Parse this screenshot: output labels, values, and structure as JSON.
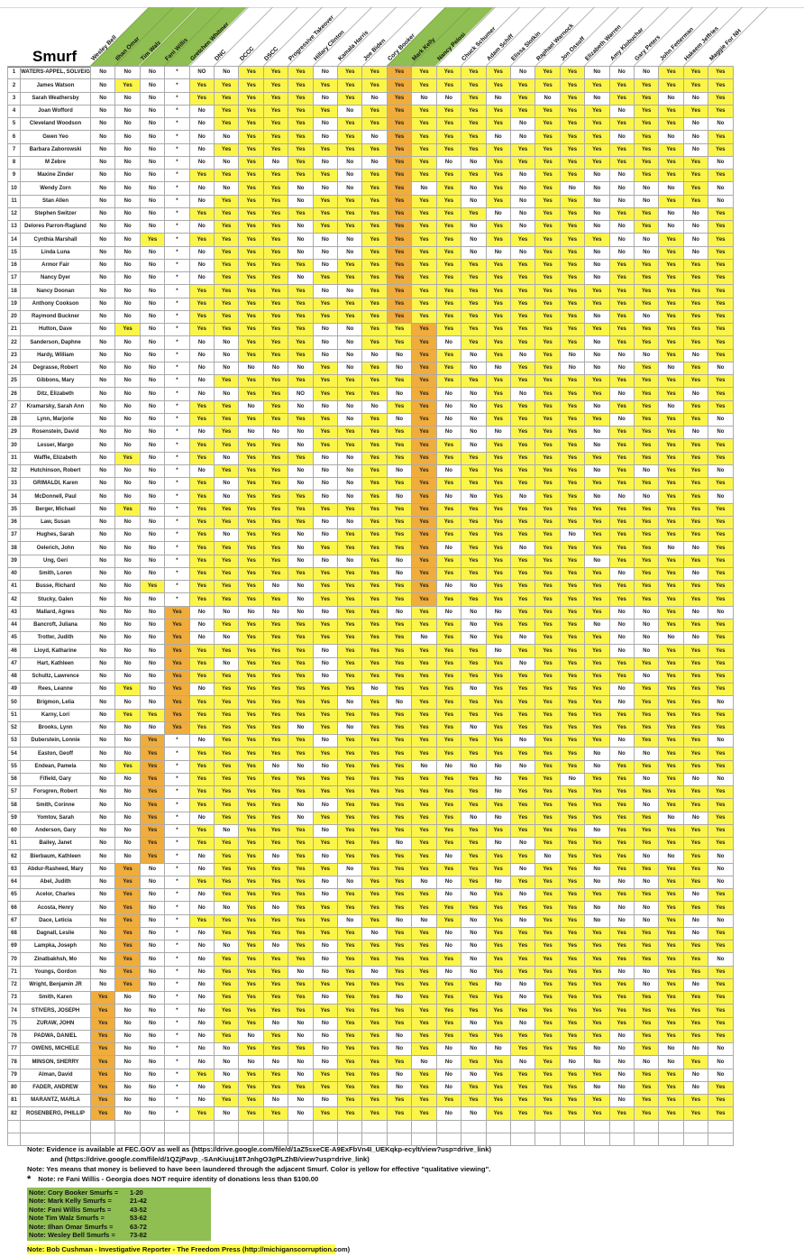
{
  "title": "Smurf",
  "legend": {
    "yes_color": "#fcf549",
    "no_color": "#ffffff",
    "group_color": "#f0ad3c",
    "header_green": "#8fbe52"
  },
  "columns": [
    {
      "name": "Wesley Bell",
      "green": true
    },
    {
      "name": "Ilhan Omar",
      "green": true
    },
    {
      "name": "Tim Walz",
      "green": true
    },
    {
      "name": "Fani Willis",
      "green": true
    },
    {
      "name": "Gretchen Whitmer",
      "green": false
    },
    {
      "name": "DNC",
      "green": false
    },
    {
      "name": "DCCC",
      "green": false
    },
    {
      "name": "DSCC",
      "green": false
    },
    {
      "name": "Progressive Takeover",
      "green": false
    },
    {
      "name": "Hillary Clinton",
      "green": false
    },
    {
      "name": "Kamala Harris",
      "green": false
    },
    {
      "name": "Joe Biden",
      "green": false
    },
    {
      "name": "Cory Booker",
      "green": true
    },
    {
      "name": "Mark Kelly",
      "green": true
    },
    {
      "name": "Nancy Pelosi",
      "green": false
    },
    {
      "name": "Chuck Schumer",
      "green": false
    },
    {
      "name": "Adam Schiff",
      "green": false
    },
    {
      "name": "Elissa Slotkin",
      "green": false
    },
    {
      "name": "Raphael Warnock",
      "green": false
    },
    {
      "name": "Jon Ossoff",
      "green": false
    },
    {
      "name": "Elizabeth Warren",
      "green": false
    },
    {
      "name": "Amy Klobuchar",
      "green": false
    },
    {
      "name": "Gary Peters",
      "green": false
    },
    {
      "name": "John Fetterman",
      "green": false
    },
    {
      "name": "Hakeem Jeffries",
      "green": false
    },
    {
      "name": "Maggie For NH",
      "green": false
    }
  ],
  "groups": [
    {
      "col": 12,
      "from": 1,
      "to": 20
    },
    {
      "col": 13,
      "from": 21,
      "to": 42
    },
    {
      "col": 3,
      "from": 43,
      "to": 52
    },
    {
      "col": 2,
      "from": 53,
      "to": 62
    },
    {
      "col": 1,
      "from": 63,
      "to": 72
    },
    {
      "col": 0,
      "from": 73,
      "to": 82
    }
  ],
  "rows": [
    {
      "n": 1,
      "name": "WATERS-APPEL, SOLVEIG",
      "values": "No,No,No,*,NO,No,Yes,Yes,Yes,No,Yes,Yes,Yes,Yes,Yes,Yes,Yes,No,Yes,Yes,No,No,No,Yes,Yes,Yes"
    },
    {
      "n": 2,
      "name": "James Watson",
      "values": "No,Yes,No,*,Yes,Yes,Yes,Yes,Yes,Yes,Yes,Yes,Yes,Yes,Yes,Yes,Yes,Yes,Yes,Yes,Yes,Yes,Yes,Yes,Yes,Yes"
    },
    {
      "n": 3,
      "name": "Sarah Weathersby",
      "values": "No,No,No,*,Yes,Yes,Yes,Yes,Yes,No,Yes,No,Yes,No,No,Yes,No,Yes,No,Yes,No,Yes,Yes,No,No,Yes"
    },
    {
      "n": 4,
      "name": "Joan Wofford",
      "values": "No,No,No,*,No,Yes,Yes,Yes,Yes,Yes,No,Yes,Yes,Yes,Yes,Yes,Yes,Yes,Yes,Yes,Yes,No,Yes,Yes,Yes,Yes"
    },
    {
      "n": 5,
      "name": "Cleveland Woodson",
      "values": "No,No,No,*,No,Yes,Yes,Yes,Yes,No,Yes,Yes,Yes,Yes,Yes,Yes,Yes,No,Yes,Yes,Yes,Yes,Yes,Yes,No,No"
    },
    {
      "n": 6,
      "name": "Gwen Yeo",
      "values": "No,No,No,*,No,No,Yes,Yes,Yes,No,Yes,No,Yes,Yes,Yes,Yes,No,No,Yes,Yes,Yes,No,Yes,No,No,Yes"
    },
    {
      "n": 7,
      "name": "Barbara Zaborowski",
      "values": "No,No,No,*,No,Yes,Yes,Yes,Yes,Yes,Yes,Yes,Yes,Yes,Yes,Yes,Yes,Yes,Yes,Yes,Yes,Yes,Yes,Yes,No,Yes"
    },
    {
      "n": 8,
      "name": "M Zebre",
      "values": "No,No,No,*,No,No,Yes,No,Yes,No,No,No,Yes,Yes,No,No,Yes,Yes,Yes,Yes,Yes,Yes,Yes,Yes,Yes,No"
    },
    {
      "n": 9,
      "name": "Maxine Zinder",
      "values": "No,No,No,*,Yes,Yes,Yes,Yes,Yes,Yes,No,Yes,Yes,Yes,Yes,Yes,Yes,No,Yes,Yes,No,No,Yes,Yes,Yes,Yes"
    },
    {
      "n": 10,
      "name": "Wendy Zorn",
      "values": "No,No,No,*,No,No,Yes,Yes,No,No,No,Yes,Yes,No,Yes,No,Yes,No,Yes,No,No,No,No,No,Yes,No"
    },
    {
      "n": 11,
      "name": "Stan Allen",
      "values": "No,No,No,*,No,Yes,Yes,Yes,No,Yes,Yes,Yes,Yes,Yes,Yes,No,Yes,No,Yes,Yes,No,No,No,Yes,Yes,No"
    },
    {
      "n": 12,
      "name": "Stephen Switzer",
      "values": "No,No,No,*,Yes,Yes,Yes,Yes,Yes,Yes,Yes,Yes,Yes,Yes,Yes,Yes,No,No,Yes,Yes,No,Yes,Yes,No,No,Yes"
    },
    {
      "n": 13,
      "name": "Delores Parron-Ragland",
      "values": "No,No,No,*,No,Yes,Yes,Yes,No,Yes,Yes,Yes,Yes,Yes,Yes,No,Yes,No,Yes,Yes,No,No,Yes,No,No,Yes"
    },
    {
      "n": 14,
      "name": "Cynthia Marshall",
      "values": "No,No,Yes,*,Yes,Yes,Yes,Yes,No,No,No,Yes,Yes,Yes,Yes,No,Yes,Yes,Yes,Yes,Yes,No,No,Yes,No,Yes"
    },
    {
      "n": 15,
      "name": "Linda Luna",
      "values": "No,No,No,*,No,Yes,Yes,Yes,No,No,No,Yes,Yes,Yes,Yes,No,No,No,Yes,Yes,No,No,No,Yes,No,Yes"
    },
    {
      "n": 16,
      "name": "Armor Fair",
      "values": "No,No,No,*,No,Yes,Yes,Yes,Yes,No,Yes,Yes,Yes,Yes,Yes,Yes,Yes,Yes,Yes,Yes,No,Yes,Yes,Yes,Yes,Yes"
    },
    {
      "n": 17,
      "name": "Nancy Dyer",
      "values": "No,No,No,*,No,Yes,Yes,Yes,No,Yes,Yes,Yes,Yes,Yes,Yes,Yes,Yes,Yes,Yes,Yes,No,Yes,Yes,Yes,Yes,Yes"
    },
    {
      "n": 18,
      "name": "Nancy Doonan",
      "values": "No,No,No,*,Yes,Yes,Yes,Yes,Yes,No,No,Yes,Yes,Yes,Yes,Yes,Yes,Yes,Yes,Yes,Yes,Yes,Yes,Yes,Yes,Yes"
    },
    {
      "n": 19,
      "name": "Anthony Cookson",
      "values": "No,No,No,*,Yes,Yes,Yes,Yes,Yes,Yes,Yes,Yes,Yes,Yes,Yes,Yes,Yes,Yes,Yes,Yes,Yes,Yes,Yes,Yes,Yes,Yes"
    },
    {
      "n": 20,
      "name": "Raymond Buckner",
      "values": "No,No,No,*,Yes,Yes,Yes,Yes,Yes,Yes,Yes,Yes,Yes,Yes,Yes,Yes,Yes,Yes,Yes,Yes,No,Yes,No,Yes,Yes,Yes"
    },
    {
      "n": 21,
      "name": "Hutton, Dave",
      "values": "No,Yes,No,*,Yes,Yes,Yes,Yes,Yes,No,No,Yes,Yes,Yes,Yes,Yes,Yes,Yes,Yes,Yes,Yes,Yes,Yes,Yes,Yes,Yes"
    },
    {
      "n": 22,
      "name": "Sanderson, Daphne",
      "values": "No,No,No,*,No,No,Yes,Yes,Yes,No,No,Yes,Yes,Yes,No,Yes,Yes,Yes,Yes,Yes,No,Yes,Yes,Yes,Yes,Yes"
    },
    {
      "n": 23,
      "name": "Hardy, William",
      "values": "No,No,No,*,No,No,Yes,Yes,Yes,No,No,No,No,Yes,Yes,No,Yes,No,Yes,No,No,No,No,Yes,No,Yes"
    },
    {
      "n": 24,
      "name": "Degrasse, Robert",
      "values": "No,No,No,*,No,No,No,No,No,Yes,No,Yes,No,Yes,Yes,No,No,Yes,Yes,No,No,No,Yes,No,Yes,No"
    },
    {
      "n": 25,
      "name": "Gibbons, Mary",
      "values": "No,No,No,*,No,Yes,Yes,Yes,Yes,Yes,Yes,Yes,Yes,Yes,Yes,Yes,Yes,Yes,Yes,Yes,Yes,Yes,Yes,Yes,Yes,Yes"
    },
    {
      "n": 26,
      "name": "Ditz, Elizabeth",
      "values": "No,No,No,*,No,No,Yes,Yes,NO,Yes,Yes,Yes,No,Yes,No,No,Yes,No,Yes,Yes,Yes,No,Yes,Yes,No,Yes"
    },
    {
      "n": 27,
      "name": "Kramarsky, Sarah Ann",
      "values": "No,No,No,*,Yes,Yes,No,Yes,No,No,No,No,Yes,Yes,No,No,Yes,Yes,Yes,Yes,No,Yes,Yes,No,Yes,Yes"
    },
    {
      "n": 28,
      "name": "Lynn, Marjorie",
      "values": "No,No,No,*,Yes,Yes,Yes,Yes,Yes,Yes,No,Yes,No,Yes,No,No,Yes,Yes,Yes,Yes,Yes,No,Yes,Yes,Yes,No"
    },
    {
      "n": 29,
      "name": "Rosenstein, David",
      "values": "No,No,No,*,No,Yes,No,No,No,Yes,Yes,Yes,Yes,Yes,No,No,No,Yes,Yes,Yes,No,Yes,Yes,Yes,No,No"
    },
    {
      "n": 30,
      "name": "Lesser, Margo",
      "values": "No,No,No,*,Yes,Yes,Yes,Yes,No,Yes,Yes,Yes,Yes,Yes,Yes,No,Yes,Yes,Yes,Yes,No,Yes,Yes,Yes,Yes,Yes"
    },
    {
      "n": 31,
      "name": "Waffle, Elizabeth",
      "values": "No,Yes,No,*,Yes,No,Yes,Yes,Yes,No,No,Yes,Yes,Yes,Yes,Yes,Yes,Yes,Yes,Yes,Yes,Yes,Yes,Yes,Yes,Yes"
    },
    {
      "n": 32,
      "name": "Hutchinson, Robert",
      "values": "No,No,No,*,No,Yes,Yes,Yes,No,No,No,Yes,No,Yes,No,Yes,Yes,Yes,Yes,Yes,No,Yes,No,Yes,Yes,No"
    },
    {
      "n": 33,
      "name": "GRIMALDI, Karen",
      "values": "No,No,No,*,Yes,No,Yes,Yes,No,No,No,Yes,Yes,Yes,Yes,Yes,Yes,Yes,Yes,Yes,Yes,Yes,Yes,Yes,Yes,Yes"
    },
    {
      "n": 34,
      "name": "McDonnell, Paul",
      "values": "No,No,No,*,Yes,No,Yes,Yes,Yes,No,No,Yes,No,Yes,No,No,Yes,No,Yes,Yes,No,No,No,Yes,Yes,No"
    },
    {
      "n": 35,
      "name": "Berger, Michael",
      "values": "No,Yes,No,*,Yes,Yes,Yes,Yes,Yes,Yes,Yes,Yes,Yes,Yes,Yes,Yes,Yes,Yes,Yes,Yes,Yes,Yes,Yes,Yes,Yes,Yes"
    },
    {
      "n": 36,
      "name": "Law, Susan",
      "values": "No,No,No,*,Yes,Yes,Yes,Yes,Yes,No,No,Yes,Yes,Yes,Yes,Yes,Yes,Yes,Yes,Yes,Yes,Yes,Yes,Yes,Yes,Yes"
    },
    {
      "n": 37,
      "name": "Hughes, Sarah",
      "values": "No,No,No,*,Yes,No,Yes,Yes,No,No,Yes,Yes,Yes,Yes,Yes,Yes,Yes,Yes,Yes,No,Yes,Yes,Yes,Yes,Yes,Yes"
    },
    {
      "n": 38,
      "name": "Oelerich, John",
      "values": "No,No,No,*,Yes,Yes,Yes,Yes,No,Yes,Yes,Yes,Yes,Yes,No,Yes,Yes,No,Yes,Yes,Yes,Yes,Yes,No,No,Yes"
    },
    {
      "n": 39,
      "name": "Ung, Geri",
      "values": "No,No,No,*,Yes,Yes,Yes,Yes,No,No,No,Yes,No,Yes,Yes,Yes,Yes,Yes,Yes,Yes,No,Yes,Yes,Yes,Yes,Yes"
    },
    {
      "n": 40,
      "name": "Smith, Loren",
      "values": "No,No,No,*,Yes,Yes,Yes,Yes,Yes,Yes,Yes,Yes,No,Yes,Yes,Yes,Yes,Yes,Yes,Yes,Yes,No,Yes,Yes,No,Yes"
    },
    {
      "n": 41,
      "name": "Busse, Richard",
      "values": "No,No,Yes,*,Yes,Yes,Yes,No,No,Yes,Yes,Yes,Yes,Yes,No,No,Yes,Yes,Yes,Yes,Yes,Yes,Yes,Yes,Yes,Yes"
    },
    {
      "n": 42,
      "name": "Stucky, Galen",
      "values": "No,No,No,*,Yes,Yes,Yes,Yes,No,Yes,Yes,Yes,Yes,Yes,Yes,Yes,Yes,Yes,Yes,Yes,Yes,Yes,Yes,Yes,Yes,Yes"
    },
    {
      "n": 43,
      "name": "Mallard, Agnes",
      "values": "No,No,No,Yes,No,No,No,No,No,No,Yes,Yes,No,Yes,No,No,No,Yes,Yes,Yes,Yes,No,No,Yes,No,No"
    },
    {
      "n": 44,
      "name": "Bancroft, Juliana",
      "values": "No,No,No,Yes,No,Yes,Yes,Yes,Yes,Yes,Yes,Yes,Yes,Yes,Yes,No,Yes,Yes,Yes,Yes,No,No,No,Yes,Yes,Yes"
    },
    {
      "n": 45,
      "name": "Trotter, Judith",
      "values": "No,No,No,Yes,No,No,Yes,Yes,Yes,Yes,Yes,Yes,Yes,No,Yes,No,Yes,No,Yes,Yes,Yes,No,No,No,No,Yes"
    },
    {
      "n": 46,
      "name": "Lloyd, Katharine",
      "values": "No,No,No,Yes,Yes,Yes,Yes,Yes,Yes,No,Yes,Yes,Yes,Yes,Yes,Yes,No,Yes,Yes,Yes,Yes,No,No,Yes,Yes,Yes"
    },
    {
      "n": 47,
      "name": "Hart, Kathleen",
      "values": "No,No,No,Yes,Yes,No,Yes,Yes,Yes,No,Yes,Yes,Yes,Yes,Yes,Yes,Yes,No,Yes,Yes,Yes,Yes,Yes,Yes,Yes,Yes"
    },
    {
      "n": 48,
      "name": "Schultz, Lawrence",
      "values": "No,No,No,Yes,Yes,Yes,Yes,Yes,Yes,No,Yes,Yes,Yes,Yes,Yes,Yes,Yes,Yes,Yes,Yes,Yes,Yes,No,Yes,Yes,Yes"
    },
    {
      "n": 49,
      "name": "Rees, Leanne",
      "values": "No,Yes,No,Yes,No,Yes,Yes,Yes,Yes,Yes,Yes,No,Yes,Yes,Yes,No,Yes,Yes,Yes,Yes,Yes,No,Yes,Yes,Yes,Yes"
    },
    {
      "n": 50,
      "name": "Brigmon, Lelia",
      "values": "No,No,No,Yes,Yes,Yes,Yes,Yes,Yes,Yes,No,Yes,No,Yes,Yes,Yes,Yes,Yes,Yes,Yes,Yes,No,Yes,Yes,Yes,No"
    },
    {
      "n": 51,
      "name": "Karny, Lori",
      "values": "No,Yes,Yes,Yes,Yes,Yes,Yes,Yes,Yes,Yes,Yes,Yes,Yes,Yes,Yes,Yes,Yes,Yes,Yes,Yes,Yes,Yes,Yes,Yes,Yes,Yes"
    },
    {
      "n": 52,
      "name": "Brooks, Lynn",
      "values": "No,No,No,Yes,Yes,Yes,Yes,Yes,No,Yes,No,Yes,Yes,Yes,Yes,No,Yes,Yes,Yes,Yes,Yes,Yes,Yes,Yes,Yes,Yes"
    },
    {
      "n": 53,
      "name": "Duberstein, Lonnie",
      "values": "No,No,Yes,*,No,Yes,Yes,Yes,Yes,No,Yes,Yes,Yes,Yes,Yes,Yes,Yes,No,Yes,Yes,Yes,No,Yes,Yes,Yes,No"
    },
    {
      "n": 54,
      "name": "Easton, Geoff",
      "values": "No,No,Yes,*,Yes,Yes,Yes,Yes,Yes,Yes,Yes,Yes,Yes,Yes,Yes,Yes,Yes,Yes,Yes,Yes,No,No,No,Yes,Yes,Yes"
    },
    {
      "n": 55,
      "name": "Endean, Pamela",
      "values": "No,Yes,Yes,*,Yes,Yes,Yes,No,No,No,Yes,Yes,Yes,No,No,No,No,No,Yes,Yes,No,Yes,Yes,Yes,Yes,Yes"
    },
    {
      "n": 56,
      "name": "Fifield, Gary",
      "values": "No,No,Yes,*,Yes,Yes,Yes,Yes,Yes,Yes,Yes,Yes,Yes,Yes,Yes,Yes,No,Yes,Yes,No,Yes,Yes,No,Yes,No,No"
    },
    {
      "n": 57,
      "name": "Forsgren, Robert",
      "values": "No,No,Yes,*,Yes,Yes,Yes,Yes,Yes,Yes,Yes,Yes,Yes,Yes,Yes,Yes,No,Yes,Yes,Yes,Yes,Yes,Yes,Yes,Yes,Yes"
    },
    {
      "n": 58,
      "name": "Smith, Corinne",
      "values": "No,No,Yes,*,Yes,Yes,Yes,Yes,No,No,Yes,Yes,Yes,Yes,Yes,Yes,Yes,Yes,Yes,Yes,Yes,Yes,No,Yes,Yes,Yes"
    },
    {
      "n": 59,
      "name": "Yomtov, Sarah",
      "values": "No,No,Yes,*,No,Yes,Yes,Yes,No,Yes,Yes,Yes,Yes,Yes,Yes,No,No,Yes,Yes,Yes,Yes,Yes,Yes,No,No,Yes"
    },
    {
      "n": 60,
      "name": "Anderson, Gary",
      "values": "No,No,Yes,*,Yes,No,Yes,Yes,Yes,No,Yes,Yes,Yes,Yes,Yes,Yes,Yes,Yes,Yes,Yes,No,Yes,Yes,Yes,Yes,Yes"
    },
    {
      "n": 61,
      "name": "Bailey, Janet",
      "values": "No,No,Yes,*,Yes,Yes,Yes,Yes,Yes,Yes,Yes,Yes,No,Yes,Yes,Yes,No,No,Yes,Yes,Yes,Yes,Yes,Yes,Yes,Yes"
    },
    {
      "n": 62,
      "name": "Bierbaum, Kathleen",
      "values": "No,No,Yes,*,No,Yes,Yes,No,Yes,No,Yes,Yes,Yes,Yes,No,Yes,Yes,Yes,No,Yes,Yes,Yes,No,No,Yes,No"
    },
    {
      "n": 63,
      "name": "Abdur-Rasheed, Mary",
      "values": "No,Yes,No,*,No,Yes,Yes,Yes,Yes,Yes,No,Yes,Yes,Yes,Yes,Yes,Yes,No,Yes,Yes,No,Yes,Yes,Yes,Yes,No"
    },
    {
      "n": 64,
      "name": "Abel, Judith",
      "values": "No,Yes,No,*,Yes,Yes,Yes,Yes,Yes,No,No,Yes,Yes,No,No,Yes,No,Yes,Yes,Yes,No,No,No,Yes,Yes,No"
    },
    {
      "n": 65,
      "name": "Acelor, Charles",
      "values": "No,Yes,No,*,No,Yes,Yes,Yes,Yes,No,Yes,Yes,Yes,Yes,No,No,Yes,No,Yes,Yes,Yes,Yes,Yes,Yes,No,Yes"
    },
    {
      "n": 66,
      "name": "Acosta, Henry",
      "values": "No,Yes,No,*,No,No,Yes,No,Yes,Yes,Yes,Yes,Yes,Yes,Yes,Yes,Yes,Yes,Yes,Yes,No,No,No,Yes,Yes,Yes"
    },
    {
      "n": 67,
      "name": "Dace, Leticia",
      "values": "No,Yes,No,*,Yes,Yes,Yes,Yes,Yes,Yes,No,Yes,No,No,Yes,No,Yes,No,Yes,Yes,No,No,No,Yes,No,No"
    },
    {
      "n": 68,
      "name": "Dagnall, Leslie",
      "values": "No,Yes,No,*,No,Yes,Yes,Yes,Yes,Yes,Yes,No,Yes,Yes,No,No,Yes,Yes,Yes,Yes,Yes,Yes,Yes,Yes,No,Yes"
    },
    {
      "n": 69,
      "name": "Lampka, Joseph",
      "values": "No,Yes,No,*,No,No,Yes,No,Yes,No,Yes,Yes,Yes,Yes,No,No,Yes,Yes,Yes,Yes,Yes,Yes,Yes,Yes,Yes,Yes"
    },
    {
      "n": 70,
      "name": "Zinatbakhsh, Mo",
      "values": "No,Yes,No,*,No,Yes,Yes,Yes,Yes,No,Yes,Yes,Yes,Yes,Yes,No,Yes,Yes,Yes,Yes,Yes,Yes,Yes,Yes,Yes,No"
    },
    {
      "n": 71,
      "name": "Youngs, Gordon",
      "values": "No,Yes,No,*,No,Yes,Yes,Yes,No,No,Yes,No,Yes,Yes,No,No,Yes,Yes,Yes,Yes,Yes,No,No,Yes,Yes,Yes"
    },
    {
      "n": 72,
      "name": "Wright, Benjamin JR",
      "values": "No,Yes,No,*,No,Yes,Yes,Yes,Yes,Yes,Yes,Yes,Yes,Yes,Yes,Yes,No,No,Yes,Yes,Yes,Yes,No,Yes,No,Yes"
    },
    {
      "n": 73,
      "name": "Smith, Karen",
      "values": "Yes,No,No,*,No,Yes,Yes,Yes,Yes,No,Yes,Yes,No,Yes,Yes,Yes,Yes,No,Yes,Yes,Yes,Yes,Yes,Yes,Yes,Yes"
    },
    {
      "n": 74,
      "name": "STIVERS, JOSEPH",
      "values": "Yes,No,No,*,No,Yes,Yes,Yes,Yes,Yes,Yes,Yes,Yes,Yes,Yes,Yes,Yes,Yes,Yes,Yes,Yes,Yes,Yes,Yes,Yes,Yes"
    },
    {
      "n": 75,
      "name": "ZURAW, JOHN",
      "values": "Yes,No,No,*,No,Yes,Yes,No,No,No,Yes,Yes,Yes,Yes,Yes,No,Yes,No,Yes,Yes,Yes,Yes,Yes,Yes,Yes,Yes"
    },
    {
      "n": 76,
      "name": "PADWA, DANIEL",
      "values": "Yes,No,No,*,No,Yes,No,Yes,No,No,Yes,Yes,No,Yes,Yes,Yes,Yes,Yes,Yes,Yes,Yes,No,Yes,Yes,Yes,Yes"
    },
    {
      "n": 77,
      "name": "OWENS, MICHELE",
      "values": "Yes,No,No,*,No,No,Yes,Yes,Yes,No,Yes,Yes,No,Yes,No,No,No,Yes,Yes,Yes,No,No,Yes,No,No,No"
    },
    {
      "n": 78,
      "name": "MINSON, SHERRY",
      "values": "Yes,No,No,*,No,No,No,No,No,No,Yes,Yes,Yes,No,No,Yes,Yes,No,Yes,No,No,No,No,No,Yes,No"
    },
    {
      "n": 79,
      "name": "Alman, David",
      "values": "Yes,No,No,*,Yes,No,Yes,Yes,No,Yes,Yes,Yes,No,Yes,No,No,Yes,Yes,Yes,Yes,Yes,No,Yes,Yes,No,No"
    },
    {
      "n": 80,
      "name": "FADER, ANDREW",
      "values": "Yes,No,No,*,No,Yes,Yes,Yes,Yes,Yes,Yes,Yes,No,Yes,No,Yes,Yes,Yes,Yes,Yes,No,No,Yes,Yes,No,Yes"
    },
    {
      "n": 81,
      "name": "MARANTZ, MARLA",
      "values": "Yes,No,No,*,No,Yes,Yes,No,No,No,Yes,Yes,Yes,Yes,Yes,Yes,Yes,Yes,Yes,Yes,Yes,No,Yes,Yes,Yes,Yes"
    },
    {
      "n": 82,
      "name": "ROSENBERG, PHILLIP",
      "values": "Yes,No,No,*,Yes,No,Yes,Yes,No,Yes,Yes,Yes,Yes,Yes,No,No,Yes,Yes,Yes,Yes,Yes,Yes,Yes,Yes,Yes,Yes"
    }
  ],
  "empty_trailing_rows": 2,
  "notes": {
    "evidence_line1": "Note: Evidence is available at FEC.GOV as well as (https://drive.google.com/file/d/1aZ5sxeCE-A9ExFbVn4I_UEKqkp-ecylt/view?usp=drive_link)",
    "evidence_line2": "and (https://drive.google.com/file/d/1QZjPavp_-SAnKiuuj18TJnhgO3gPLZhB/view?usp=drive_link)",
    "yes_note": "Note: Yes means that money is believed to have been laundered through the adjacent Smurf. Color is yellow for effective \"qualitative viewing\".",
    "fani_star": "*",
    "fani_note": "Note: re Fani Willis - Georgia does NOT require identity of donations less than $100.00",
    "group_notes": [
      {
        "label": "Note: Cory Booker Smurfs =",
        "range": "1-20"
      },
      {
        "label": "Note: Mark Kelly Smurfs =",
        "range": "21-42"
      },
      {
        "label": "Note: Fani Willis Smurfs =",
        "range": "43-52"
      },
      {
        "label": "Note Tim Walz Smurfs =",
        "range": "53-62"
      },
      {
        "label": "Note: Ilhan Omar Smurfs =",
        "range": "63-72"
      },
      {
        "label": "Note: Wesley Bell Smurfs =",
        "range": "73-82"
      }
    ],
    "reporter_note": "Note: Bob Cushman - Investigative Reporter - The Freedom Press    (http://michiganscorruption.com)"
  }
}
